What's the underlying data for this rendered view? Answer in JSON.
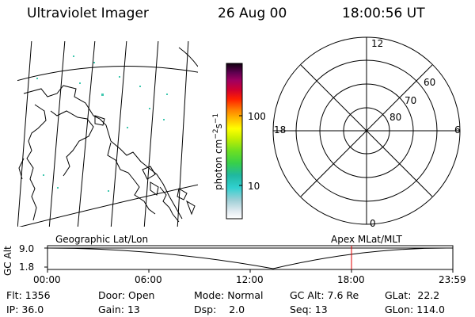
{
  "header": {
    "instrument": "Ultraviolet Imager",
    "date": "26 Aug 00",
    "time": "18:00:56 UT"
  },
  "colorbar": {
    "unit_label": "photon cm",
    "unit_exp1": "−2",
    "unit_mid": "s",
    "unit_exp2": "−1",
    "ticks": [
      "100",
      "10"
    ]
  },
  "polar_plot": {
    "mlt_labels": {
      "top": "12",
      "left": "18",
      "right": "6",
      "bottom": "0"
    },
    "lat_labels": [
      "60",
      "70",
      "80"
    ]
  },
  "timeline": {
    "left_label": "Geographic Lat/Lon",
    "right_label": "Apex MLat/MLT",
    "axis_title": "GC Alt",
    "y_ticks": [
      "9.0",
      "1.8"
    ],
    "x_ticks": [
      "00:00",
      "06:00",
      "12:00",
      "18:00",
      "23:59"
    ],
    "marker_time": "18:00",
    "colors": {
      "marker": "#e00000",
      "curve": "#000000"
    }
  },
  "info": {
    "flt_label": "Flt:",
    "flt_value": "1356",
    "door_label": "Door:",
    "door_value": "Open",
    "mode_label": "Mode:",
    "mode_value": "Normal",
    "gcalt_label": "GC Alt:",
    "gcalt_value": "7.6 Re",
    "glat_label": "GLat:",
    "glat_value": "22.2",
    "ip_label": "IP:",
    "ip_value": "36.0",
    "gain_label": "Gain:",
    "gain_value": "13",
    "dsp_label": "Dsp:",
    "dsp_value": "2.0",
    "seq_label": "Seq:",
    "seq_value": "13",
    "glon_label": "GLon:",
    "glon_value": "114.0"
  }
}
